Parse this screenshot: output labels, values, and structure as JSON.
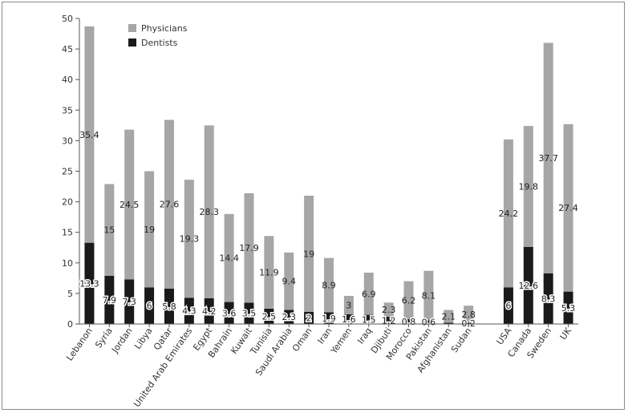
{
  "chart_data": {
    "type": "bar",
    "stacked": true,
    "categories": [
      "Lebanon",
      "Syria",
      "Jordan",
      "Libya",
      "Qatar",
      "United Arab Emirates",
      "Egypt",
      "Bahrain",
      "Kuwait",
      "Tunisia",
      "Saudi Arabia",
      "Oman",
      "Iran",
      "Yemen",
      "Iraq",
      "Djibuti",
      "Morocco",
      "Pakistan",
      "Afghanistan",
      "Sudan",
      "",
      "USA",
      "Canada",
      "Sweden",
      "UK"
    ],
    "series": [
      {
        "name": "Dentists",
        "color": "#1a1a1a",
        "values": [
          13.3,
          7.9,
          7.3,
          6,
          5.8,
          4.3,
          4.2,
          3.6,
          3.5,
          2.5,
          2.3,
          2,
          1.9,
          1.6,
          1.5,
          1.2,
          0.8,
          0.6,
          0.2,
          0.2,
          null,
          6,
          12.6,
          8.3,
          5.3
        ],
        "labels": [
          "13.3",
          "7.9",
          "7.3",
          "6",
          "5.8",
          "4.3",
          "4.2",
          "3.6",
          "3.5",
          "2.5",
          "2.3",
          "2",
          "1.9",
          "1.6",
          "1.5",
          "1.2",
          "0.8",
          "0.6",
          "",
          "0.2",
          "",
          "6",
          "12.6",
          "8.3",
          "5.3"
        ]
      },
      {
        "name": "Physicians",
        "color": "#a6a6a6",
        "values": [
          35.4,
          15,
          24.5,
          19,
          27.6,
          19.3,
          28.3,
          14.4,
          17.9,
          11.9,
          9.4,
          19,
          8.9,
          3,
          6.9,
          2.3,
          6.2,
          8.1,
          2.1,
          2.8,
          null,
          24.2,
          19.8,
          37.7,
          27.4
        ],
        "labels": [
          "35.4",
          "15",
          "24.5",
          "19",
          "27.6",
          "19.3",
          "28.3",
          "14.4",
          "17.9",
          "11.9",
          "9.4",
          "19",
          "8.9",
          "3",
          "6.9",
          "2.3",
          "6.2",
          "8.1",
          "2.1",
          "2.8",
          "",
          "24.2",
          "19.8",
          "37.7",
          "27.4"
        ]
      }
    ],
    "ylim": [
      0,
      50
    ],
    "yticks": [
      "0",
      "5",
      "10",
      "15",
      "20",
      "25",
      "30",
      "35",
      "40",
      "45",
      "50"
    ],
    "legend_position": "top-left",
    "grid": false
  }
}
